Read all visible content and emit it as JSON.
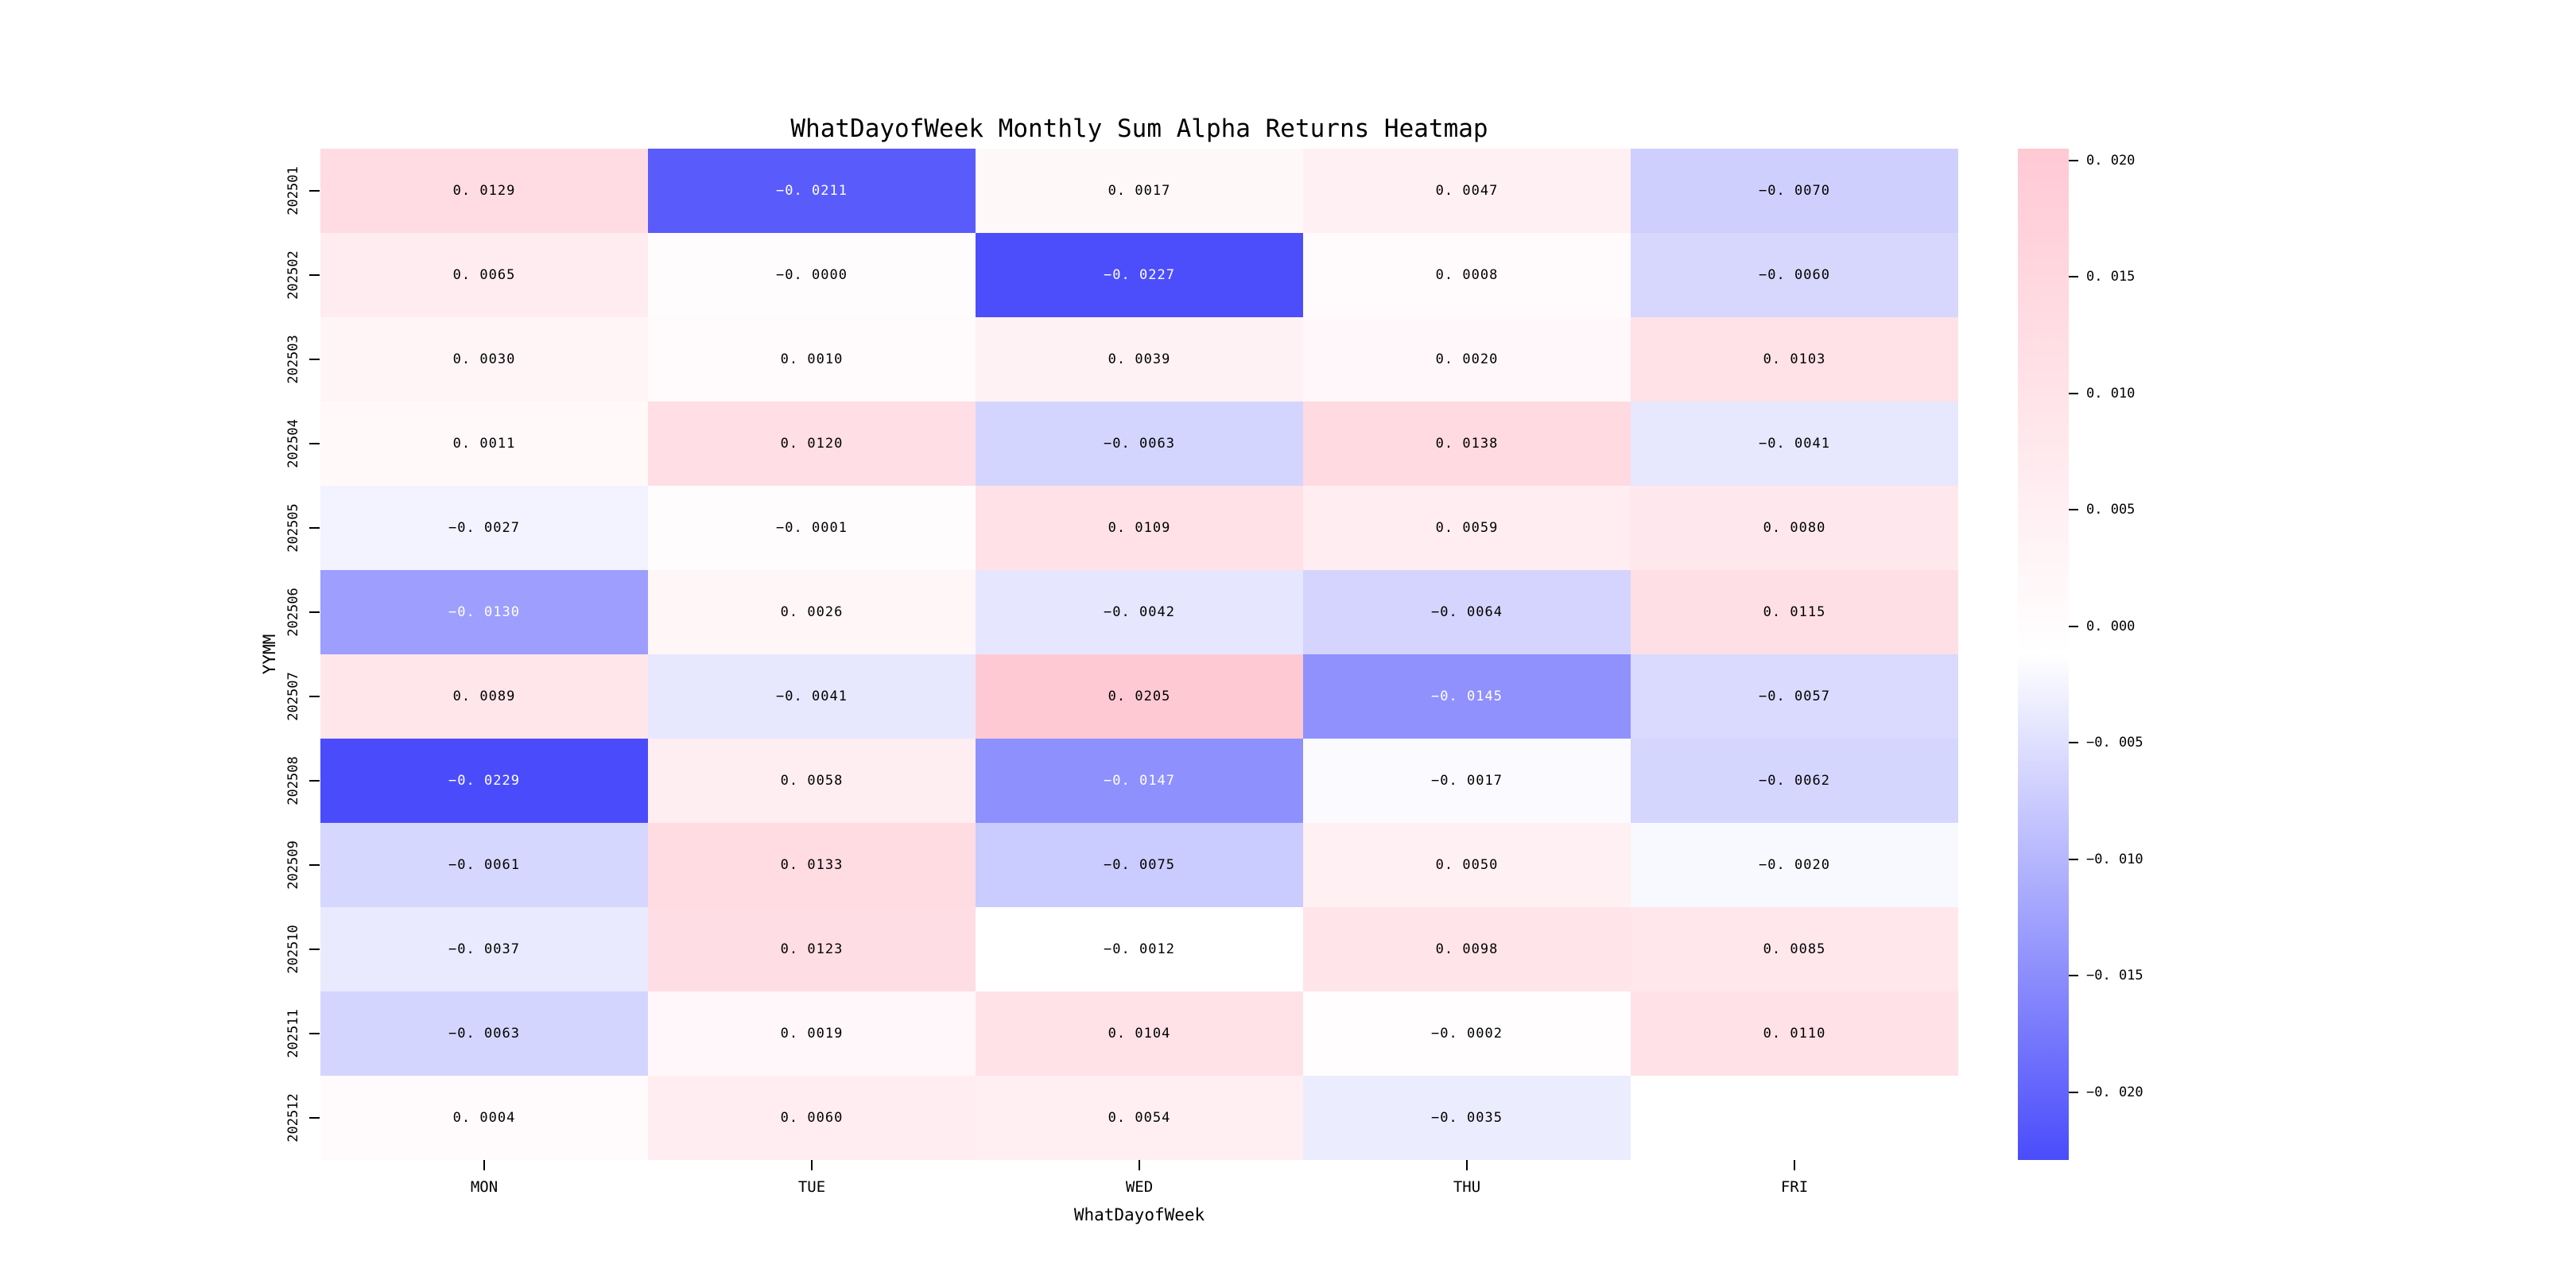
{
  "chart_data": {
    "type": "heatmap",
    "title": "WhatDayofWeek Monthly Sum Alpha Returns Heatmap",
    "xlabel": "WhatDayofWeek",
    "ylabel": "YYMM",
    "x_categories": [
      "MON",
      "TUE",
      "WED",
      "THU",
      "FRI"
    ],
    "y_categories": [
      "202501",
      "202502",
      "202503",
      "202504",
      "202505",
      "202506",
      "202507",
      "202508",
      "202509",
      "202510",
      "202511",
      "202512"
    ],
    "values": [
      [
        0.0129,
        -0.0211,
        0.0017,
        0.0047,
        -0.007
      ],
      [
        0.0065,
        -0.0,
        -0.0227,
        0.0008,
        -0.006
      ],
      [
        0.003,
        0.001,
        0.0039,
        0.002,
        0.0103
      ],
      [
        0.0011,
        0.012,
        -0.0063,
        0.0138,
        -0.0041
      ],
      [
        -0.0027,
        -0.0001,
        0.0109,
        0.0059,
        0.008
      ],
      [
        -0.013,
        0.0026,
        -0.0042,
        -0.0064,
        0.0115
      ],
      [
        0.0089,
        -0.0041,
        0.0205,
        -0.0145,
        -0.0057
      ],
      [
        -0.0229,
        0.0058,
        -0.0147,
        -0.0017,
        -0.0062
      ],
      [
        -0.0061,
        0.0133,
        -0.0075,
        0.005,
        -0.002
      ],
      [
        -0.0037,
        0.0123,
        -0.0012,
        0.0098,
        0.0085
      ],
      [
        -0.0063,
        0.0019,
        0.0104,
        -0.0002,
        0.011
      ],
      [
        0.0004,
        0.006,
        0.0054,
        -0.0035,
        null
      ]
    ],
    "cell_labels": [
      [
        "0.0129",
        "-0.0211",
        "0.0017",
        "0.0047",
        "-0.0070"
      ],
      [
        "0.0065",
        "-0.0000",
        "-0.0227",
        "0.0008",
        "-0.0060"
      ],
      [
        "0.0030",
        "0.0010",
        "0.0039",
        "0.0020",
        "0.0103"
      ],
      [
        "0.0011",
        "0.0120",
        "-0.0063",
        "0.0138",
        "-0.0041"
      ],
      [
        "-0.0027",
        "-0.0001",
        "0.0109",
        "0.0059",
        "0.0080"
      ],
      [
        "-0.0130",
        "0.0026",
        "-0.0042",
        "-0.0064",
        "0.0115"
      ],
      [
        "0.0089",
        "-0.0041",
        "0.0205",
        "-0.0145",
        "-0.0057"
      ],
      [
        "-0.0229",
        "0.0058",
        "-0.0147",
        "-0.0017",
        "-0.0062"
      ],
      [
        "-0.0061",
        "0.0133",
        "-0.0075",
        "0.0050",
        "-0.0020"
      ],
      [
        "-0.0037",
        "0.0123",
        "-0.0012",
        "0.0098",
        "0.0085"
      ],
      [
        "-0.0063",
        "0.0019",
        "0.0104",
        "-0.0002",
        "0.0110"
      ],
      [
        "0.0004",
        "0.0060",
        "0.0054",
        "-0.0035",
        ""
      ]
    ],
    "vmin": -0.0229,
    "vmax": 0.0205,
    "colormap": {
      "low": "#4A4CFB",
      "mid": "#FFFFFF",
      "high": "#FFC9D4"
    },
    "cell_text_dark": "#000000",
    "cell_text_light": "#FFFFFF",
    "white_text_threshold": 0.29,
    "colorbar_ticks": [
      0.02,
      0.015,
      0.01,
      0.005,
      0.0,
      -0.005,
      -0.01,
      -0.015,
      -0.02
    ],
    "colorbar_tick_labels": [
      "0.020",
      "0.015",
      "0.010",
      "0.005",
      "0.000",
      "-0.005",
      "-0.010",
      "-0.015",
      "-0.020"
    ],
    "legend_position": "right",
    "grid": false
  }
}
